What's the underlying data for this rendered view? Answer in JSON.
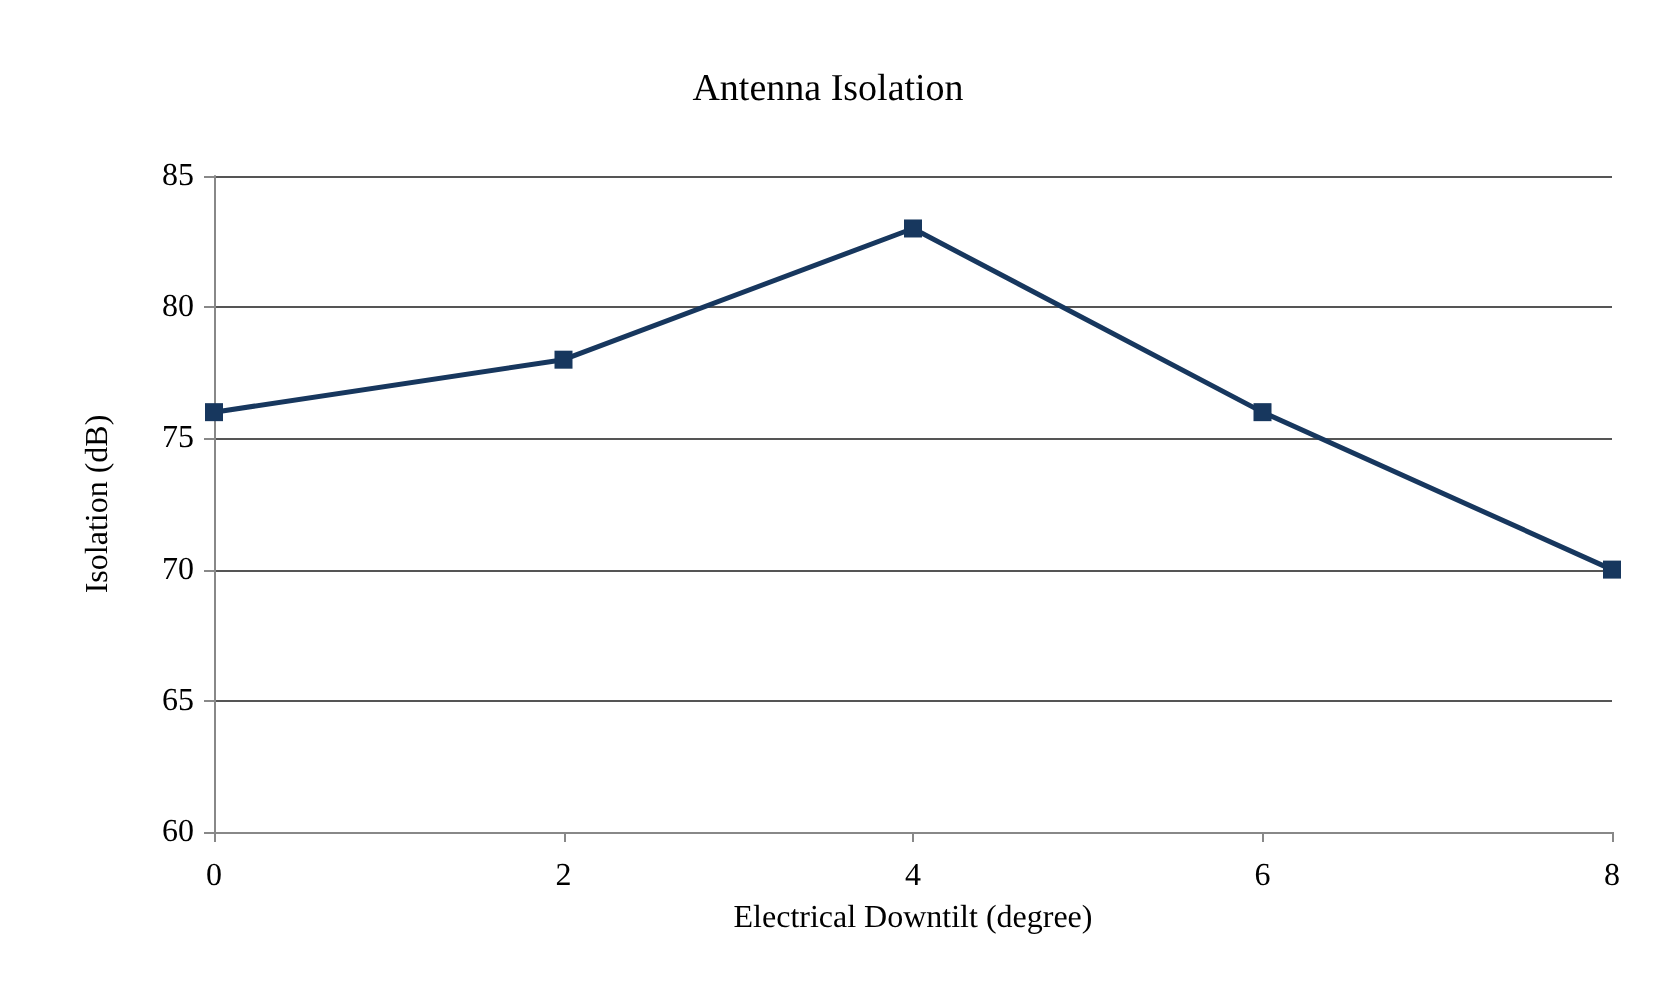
{
  "chart_data": {
    "type": "line",
    "title": "Antenna Isolation",
    "xlabel": "Electrical Downtilt (degree)",
    "ylabel": "Isolation (dB)",
    "x": [
      0,
      2,
      4,
      6,
      8
    ],
    "series": [
      {
        "color": "#17375e",
        "values": [
          76,
          78,
          83,
          76,
          70
        ]
      }
    ],
    "xlim": [
      0,
      8
    ],
    "xticks": [
      0,
      2,
      4,
      6,
      8
    ],
    "ylim": [
      60,
      85
    ],
    "yticks": [
      60,
      65,
      70,
      75,
      80,
      85
    ],
    "grid": "y",
    "marker": "square",
    "line_style": "solid"
  }
}
